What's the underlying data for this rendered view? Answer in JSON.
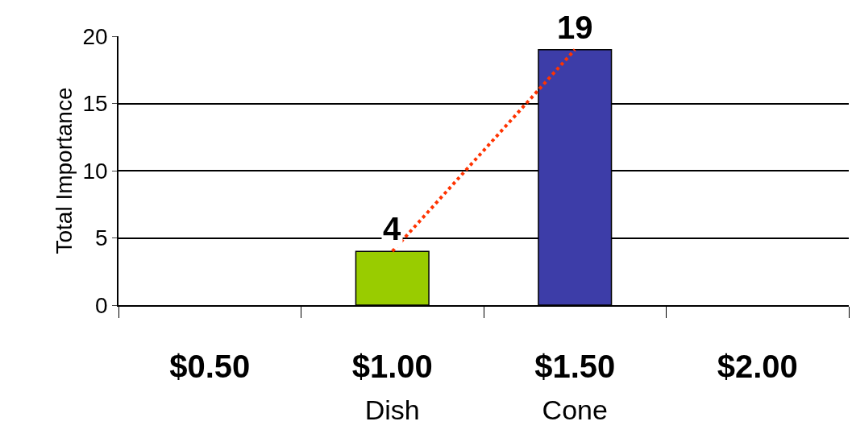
{
  "chart_data": {
    "type": "bar",
    "ylabel": "Total Importance",
    "categories": [
      "$0.50",
      "$1.00\nDish",
      "$1.50\nCone",
      "$2.00"
    ],
    "series": [
      {
        "colors": [
          "#99cc00",
          "#99cc00",
          "#3d3da8",
          "#3d3da8"
        ],
        "values": [
          null,
          4,
          19,
          null
        ],
        "value_labels": [
          null,
          "4",
          "19",
          null
        ]
      },
      {
        "type": "line",
        "color": "#ff3300",
        "line_style": "dotted",
        "values": [
          null,
          4,
          19,
          null
        ]
      }
    ],
    "ylim": [
      0,
      20
    ],
    "yticks": [
      0,
      5,
      10,
      15,
      20
    ],
    "grid": "y"
  }
}
